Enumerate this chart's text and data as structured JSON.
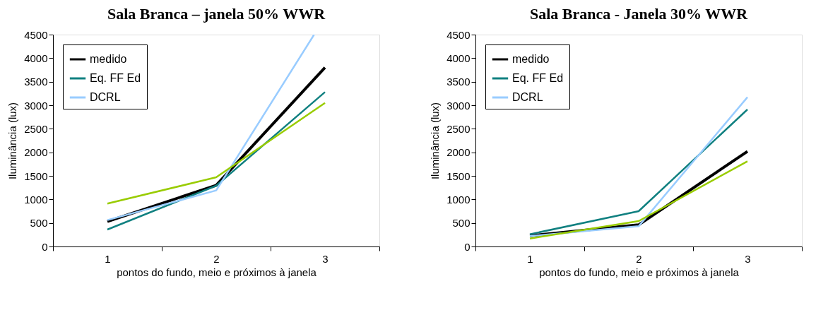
{
  "chart_data": [
    {
      "type": "line",
      "title": "Sala Branca – janela 50% WWR",
      "xlabel": "pontos do fundo, meio e próximos à janela",
      "ylabel": "Iluminância  (lux)",
      "x": [
        1,
        2,
        3
      ],
      "xlim": [
        0.5,
        3.5
      ],
      "xticks": [
        {
          "value": 0.5,
          "label": null
        },
        1,
        {
          "value": 1.5,
          "label": null
        },
        2,
        {
          "value": 2.5,
          "label": null
        },
        3,
        {
          "value": 3.5,
          "label": null
        }
      ],
      "ylim": [
        0,
        4500
      ],
      "yticks": [
        0,
        500,
        1000,
        1500,
        2000,
        2500,
        3000,
        3500,
        4000,
        4500
      ],
      "grid": false,
      "legend": "top left",
      "marker": "none",
      "line_style": "solid",
      "series": [
        {
          "name": "medido",
          "color": "#000000",
          "values": [
            530,
            1300,
            3800
          ]
        },
        {
          "name": "Eq. FF Ed",
          "color": "#108080",
          "values": [
            360,
            1290,
            3280
          ]
        },
        {
          "name": "DCRL",
          "color": "#99ccff",
          "x": [
            1,
            2,
            2.9
          ],
          "values": [
            560,
            1190,
            4500
          ]
        },
        {
          "color": "#99cc00",
          "values": [
            910,
            1470,
            3050
          ]
        }
      ]
    },
    {
      "type": "line",
      "title": "Sala Branca - Janela 30% WWR",
      "xlabel": "pontos do fundo, meio e próximos à janela",
      "ylabel": "Iluminância  (lux)",
      "x": [
        1,
        2,
        3
      ],
      "xlim": [
        0.5,
        3.5
      ],
      "xticks": [
        {
          "value": 0.5,
          "label": null
        },
        1,
        {
          "value": 1.5,
          "label": null
        },
        2,
        {
          "value": 2.5,
          "label": null
        },
        3,
        {
          "value": 3.5,
          "label": null
        }
      ],
      "ylim": [
        0,
        4500
      ],
      "yticks": [
        0,
        500,
        1000,
        1500,
        2000,
        2500,
        3000,
        3500,
        4000,
        4500
      ],
      "grid": false,
      "legend": "top left",
      "marker": "none",
      "line_style": "solid",
      "series": [
        {
          "name": "medido",
          "color": "#000000",
          "values": [
            230,
            460,
            2020
          ]
        },
        {
          "name": "Eq. FF Ed",
          "color": "#108080",
          "values": [
            260,
            750,
            2910
          ]
        },
        {
          "name": "DCRL",
          "color": "#99ccff",
          "values": [
            220,
            430,
            3170
          ]
        },
        {
          "color": "#99cc00",
          "values": [
            170,
            540,
            1810
          ]
        }
      ]
    }
  ]
}
